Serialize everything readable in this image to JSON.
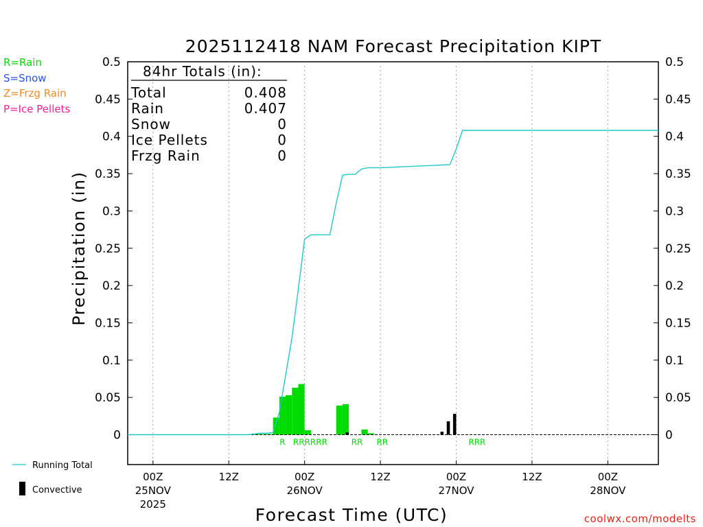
{
  "chart_data": {
    "type": "bar",
    "title": "2025112418 NAM Forecast Precipitation KIPT",
    "xlabel": "Forecast Time (UTC)",
    "ylabel": "Precipitation (in)",
    "ylim": [
      -0.04,
      0.5
    ],
    "y_ticks": [
      0,
      0.05,
      0.1,
      0.15,
      0.2,
      0.25,
      0.3,
      0.35,
      0.4,
      0.45,
      0.5
    ],
    "y_tick_labels": [
      "0",
      "0.05",
      "0.1",
      "0.15",
      "0.2",
      "0.25",
      "0.3",
      "0.35",
      "0.4",
      "0.45",
      "0.5"
    ],
    "xlim_hours": [
      -4,
      80
    ],
    "x_ticks": [
      {
        "hour": 0,
        "line1": "00Z",
        "line2": "25NOV",
        "line3": "2025"
      },
      {
        "hour": 12,
        "line1": "12Z",
        "line2": "",
        "line3": ""
      },
      {
        "hour": 24,
        "line1": "00Z",
        "line2": "26NOV",
        "line3": ""
      },
      {
        "hour": 36,
        "line1": "12Z",
        "line2": "",
        "line3": ""
      },
      {
        "hour": 48,
        "line1": "00Z",
        "line2": "27NOV",
        "line3": ""
      },
      {
        "hour": 60,
        "line1": "12Z",
        "line2": "",
        "line3": ""
      },
      {
        "hour": 72,
        "line1": "00Z",
        "line2": "28NOV",
        "line3": ""
      }
    ],
    "bars": [
      {
        "hour": 17,
        "total": 0.001,
        "convective": 0
      },
      {
        "hour": 18,
        "total": 0.001,
        "convective": 0
      },
      {
        "hour": 19,
        "total": 0.001,
        "convective": 0
      },
      {
        "hour": 20,
        "total": 0.023,
        "convective": 0
      },
      {
        "hour": 21,
        "total": 0.051,
        "convective": 0
      },
      {
        "hour": 22,
        "total": 0.053,
        "convective": 0
      },
      {
        "hour": 23,
        "total": 0.063,
        "convective": 0
      },
      {
        "hour": 24,
        "total": 0.068,
        "convective": 0
      },
      {
        "hour": 25,
        "total": 0.006,
        "convective": 0
      },
      {
        "hour": 30,
        "total": 0.039,
        "convective": 0
      },
      {
        "hour": 31,
        "total": 0.041,
        "convective": 0.003
      },
      {
        "hour": 34,
        "total": 0.007,
        "convective": 0
      },
      {
        "hour": 35,
        "total": 0.002,
        "convective": 0
      },
      {
        "hour": 46,
        "total": 0.004,
        "convective": 0.004
      },
      {
        "hour": 47,
        "total": 0.018,
        "convective": 0.018
      },
      {
        "hour": 48,
        "total": 0.028,
        "convective": 0.028
      }
    ],
    "running_total": {
      "x": [
        -4,
        15,
        16,
        17,
        18,
        19,
        20,
        21,
        22,
        23,
        24,
        25,
        26,
        27,
        28,
        29,
        30,
        31,
        32,
        33,
        34,
        35,
        36,
        47,
        48,
        49,
        80
      ],
      "y": [
        0,
        0,
        0.001,
        0.002,
        0.002,
        0.003,
        0.03,
        0.08,
        0.13,
        0.195,
        0.262,
        0.268,
        0.268,
        0.268,
        0.268,
        0.31,
        0.348,
        0.349,
        0.349,
        0.356,
        0.358,
        0.358,
        0.358,
        0.362,
        0.383,
        0.408,
        0.408
      ]
    },
    "type_markers": [
      {
        "hour": 20.5,
        "label": "R"
      },
      {
        "hour": 24.9,
        "label": "RRRRRR"
      },
      {
        "hour": 32.3,
        "label": "RR"
      },
      {
        "hour": 36.3,
        "label": "RR"
      },
      {
        "hour": 51.3,
        "label": "RRR"
      }
    ],
    "colors": {
      "rain": "#00dc00",
      "snow": "#2a55e8",
      "frzg_rain": "#f08a28",
      "ice_pellets": "#e8209a",
      "convective": "#000000",
      "running_total": "#1ec8c8",
      "footer": "#e2231a",
      "grid": "#a0a0a0"
    }
  },
  "legend_types": [
    {
      "key": "rain",
      "label": "R=Rain"
    },
    {
      "key": "snow",
      "label": "S=Snow"
    },
    {
      "key": "frzg_rain",
      "label": "Z=Frzg Rain"
    },
    {
      "key": "ice_pellets",
      "label": "P=Ice Pellets"
    }
  ],
  "legend_lines": {
    "running_total": "Running Total",
    "convective": "Convective"
  },
  "totals": {
    "header": "84hr Totals (in):",
    "rows": [
      {
        "label": "Total",
        "value": "0.408"
      },
      {
        "label": "Rain",
        "value": "0.407"
      },
      {
        "label": "Snow",
        "value": "0"
      },
      {
        "label": "Ice Pellets",
        "value": "0"
      },
      {
        "label": "Frzg Rain",
        "value": "0"
      }
    ]
  },
  "footer": "coolwx.com/modelts"
}
